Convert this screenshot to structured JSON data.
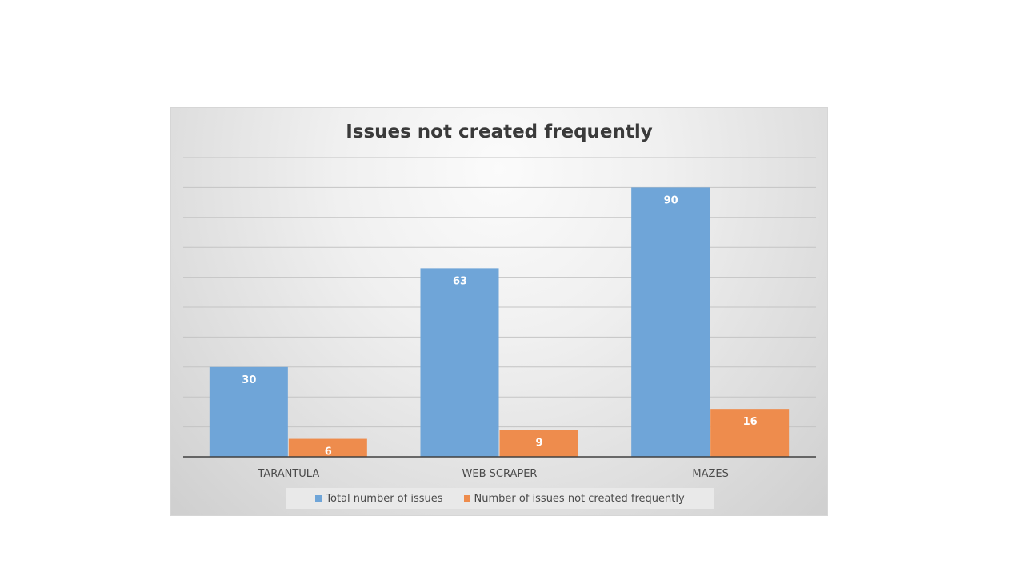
{
  "chart_data": {
    "type": "bar",
    "title": "Issues not created frequently",
    "xlabel": "",
    "ylabel": "",
    "categories": [
      "TARANTULA",
      "WEB SCRAPER",
      "MAZES"
    ],
    "series": [
      {
        "name": "Total number of issues",
        "values": [
          30,
          63,
          90
        ],
        "color": "#6fa5d8"
      },
      {
        "name": "Number of issues not created frequently",
        "values": [
          6,
          9,
          16
        ],
        "color": "#ee8c4d"
      }
    ],
    "ylim": [
      0,
      100
    ],
    "grid": true,
    "legend_position": "bottom"
  }
}
